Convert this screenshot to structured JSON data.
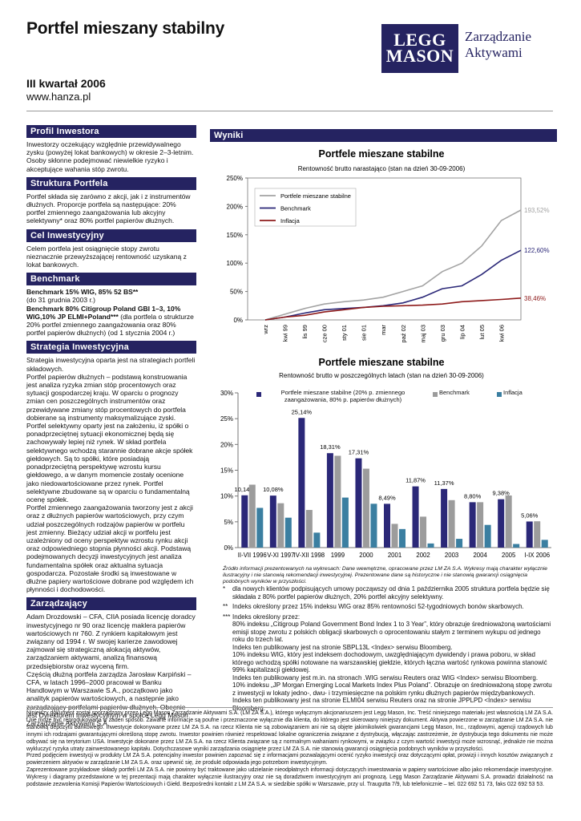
{
  "header": {
    "title": "Portfel mieszany stabilny",
    "quarter": "III kwartał 2006",
    "url": "www.hanza.pl"
  },
  "logo": {
    "brand": [
      "LEGG",
      "MASON"
    ],
    "tagline": [
      "Zarządzanie",
      "Aktywami"
    ]
  },
  "sections": [
    {
      "title": "Profil Inwestora",
      "paragraphs": [
        "Inwestorzy oczekujący względnie przewidywalnego zysku (powyżej lokat bankowych) w okresie 2–3-letnim. Osoby skłonne podejmować niewielkie ryzyko i akceptujące wahania stóp zwrotu."
      ]
    },
    {
      "title": "Struktura Portfela",
      "paragraphs": [
        "Portfel składa się zarówno z akcji, jak i z instrumentów dłużnych. Proporcje portfela są następujące: 20% portfel zmiennego zaangażowania lub akcyjny selektywny* oraz 80% portfel papierów dłużnych."
      ]
    },
    {
      "title": "Cel Inwestycyjny",
      "paragraphs": [
        "Celem portfela jest osiągnięcie stopy zwrotu nieznacznie przewyższającej rentowność uzyskaną z lokat bankowych."
      ]
    },
    {
      "title": "Benchmark",
      "paragraphs": [
        [
          {
            "text": "Benchmark 15% WIG, 85% 52 BS**",
            "bold": true
          }
        ],
        [
          {
            "text": "(do 31 grudnia 2003 r.)",
            "bold": false
          }
        ],
        [
          {
            "text": "Benchmark 80% Citigroup Poland GBI 1–3, 10% WIG,10% JP ELMI+Poland***",
            "bold": true
          },
          {
            "text": " (dla portfela o strukturze 20% portfel zmiennego zaangażowania oraz 80% portfel papierów dłużnych) (od 1 stycznia 2004 r.)",
            "bold": false
          }
        ]
      ]
    },
    {
      "title": "Strategia Inwestycyjna",
      "paragraphs": [
        "Strategia inwestycyjna oparta jest na strategiach portfeli składowych.",
        "Portfel papierów dłużnych – podstawą konstruowania jest analiza ryzyka zmian stóp procentowych oraz sytuacji gospodarczej kraju. W oparciu o prognozy zmian cen poszczególnych instrumentów oraz przewidywane zmiany stóp procentowych do portfela dobierane są instrumenty maksymalizujące zyski.",
        "Portfel selektywny oparty jest na założeniu, iż spółki o ponadprzeciętnej sytuacji ekonomicznej będą się zachowywały lepiej niż rynek. W skład portfela selektywnego wchodzą starannie dobrane akcje spółek giełdowych. Są to spółki, które posiadają ponadprzeciętną perspektywę wzrostu kursu giełdowego, a w danym momencie zostały ocenione jako niedowartościowane przez rynek. Portfel selektywne zbudowane są w oparciu o fundamentalną ocenę spółek.",
        "Portfel zmiennego zaangażowania tworzony jest z akcji oraz z dłużnych papierów wartościowych, przy czym udział poszczególnych rodzajów papierów w portfelu jest zmienny. Bieżący udział akcji w portfelu jest uzależniony od oceny perspektyw wzrostu rynku akcji oraz odpowiedniego stopnia płynności akcji. Podstawą podejmowanych decyzji inwestycyjnych jest analiza fundamentalna spółek oraz aktualna sytuacja gospodarcza. Pozostałe środki są inwestowane w dłużne papiery wartościowe dobrane pod względem ich płynności i dochodowości."
      ]
    },
    {
      "title": "Zarządzający",
      "paragraphs": [
        "Adam Drozdowski – CFA, CIIA posiada licencję doradcy inwestycyjnego nr 90 oraz licencję maklera papierów wartościowych nr 760. Z rynkiem kapitałowym jest związany od 1994 r. W swojej karierze zawodowej zajmował się strategiczną alokacją aktywów, zarządzaniem aktywami, analizą finansową przedsiębiorstw oraz wyceną firm.",
        "Częścią dłużną portfela zarządza Jarosław Karpiński – CFA, w latach 1996–2000 pracował w Banku Handlowym w Warszawie S.A., początkowo jako analityk papierów wartościowych, a następnie jako zarządzający portfelami papierów dłużnych. Obecnie jest Dyrektorem Inwestycyjnym w spółce Legg Mason Zarządzanie Aktywami S.A."
      ]
    }
  ],
  "results_title": "Wyniki",
  "chart_data": [
    {
      "type": "line",
      "title": "Portfele mieszane stabilne",
      "subtitle": "Rentowność brutto narastająco (stan na dzień 30-09-2006)",
      "categories": [
        "wrz",
        "kwi 99",
        "lis 99",
        "cze 00",
        "sty 01",
        "sie 01",
        "mar",
        "paź 02",
        "maj 03",
        "gru 03",
        "lip 04",
        "lut 05",
        "kwi 06",
        null
      ],
      "series": [
        {
          "name": "Portfele mieszane stabilne",
          "color": "#a3a3a3",
          "values": [
            0,
            10,
            20,
            28,
            32,
            35,
            40,
            50,
            60,
            85,
            100,
            130,
            175,
            193.52
          ],
          "value_labels": [
            null,
            null,
            null,
            null,
            null,
            null,
            null,
            null,
            null,
            null,
            null,
            null,
            null,
            "193,52%"
          ]
        },
        {
          "name": "Benchmark",
          "color": "#2b2878",
          "values": [
            0,
            5,
            12,
            18,
            20,
            22,
            25,
            30,
            40,
            55,
            60,
            80,
            105,
            122.6
          ],
          "value_labels": [
            null,
            null,
            null,
            null,
            null,
            null,
            null,
            null,
            null,
            null,
            null,
            null,
            null,
            "122,60%"
          ]
        },
        {
          "name": "Inflacja",
          "color": "#8e1b1b",
          "values": [
            0,
            5,
            8,
            14,
            18,
            22,
            24,
            25,
            26,
            28,
            32,
            34,
            36,
            38.46
          ],
          "value_labels": [
            null,
            null,
            null,
            null,
            null,
            null,
            null,
            null,
            null,
            null,
            null,
            null,
            null,
            "38,46%"
          ]
        }
      ],
      "ylim": [
        0,
        250
      ],
      "yticks": [
        {
          "value": 0,
          "label": "0%"
        },
        {
          "value": 50,
          "label": "50%"
        },
        {
          "value": 100,
          "label": "100%"
        },
        {
          "value": 150,
          "label": "150%"
        },
        {
          "value": 200,
          "label": "200%"
        },
        {
          "value": 250,
          "label": "250%"
        }
      ],
      "grid": false,
      "legend": "upper left"
    },
    {
      "type": "bar",
      "title": "Portfele mieszane stabilne",
      "subtitle": "Rentowność brutto w poszczególnych latach (stan na dzień 30-09-2006)",
      "categories": [
        "II-VII 1996",
        "V-XI 1997",
        "IV-XII 1998",
        "1999",
        "2000",
        "2001",
        "2002",
        "2003",
        "2004",
        "2005",
        "I-IX 2006"
      ],
      "series": [
        {
          "name": "Portfele mieszane stabilne (20% p. zmiennego zaangażowania, 80% p. papierów dłużnych)",
          "color": "#2b2878",
          "values": [
            10.14,
            10.08,
            25.14,
            18.31,
            17.31,
            8.49,
            11.87,
            11.37,
            8.8,
            9.38,
            5.06
          ],
          "value_labels": [
            "10,14%",
            "10,08%",
            "25,14%",
            "18,31%",
            "17,31%",
            "8,49%",
            "11,87%",
            "11,37%",
            "8,80%",
            "9,38%",
            "5,06%"
          ]
        },
        {
          "name": "Benchmark",
          "color": "#9c9c9c",
          "values": [
            12.2,
            8.6,
            7.3,
            17.8,
            15.3,
            4.6,
            6.0,
            9.2,
            8.8,
            10.1,
            5.1
          ]
        },
        {
          "name": "Inflacja",
          "color": "#3b7fa1",
          "values": [
            7.7,
            5.8,
            2.9,
            9.7,
            8.5,
            3.6,
            0.8,
            1.7,
            4.4,
            0.7,
            1.5
          ]
        }
      ],
      "ylim": [
        0,
        30
      ],
      "yticks": [
        {
          "value": 0,
          "label": "0%"
        },
        {
          "value": 5,
          "label": "5%"
        },
        {
          "value": 10,
          "label": "10%"
        },
        {
          "value": 15,
          "label": "15%"
        },
        {
          "value": 20,
          "label": "20%"
        },
        {
          "value": 25,
          "label": "25%"
        },
        {
          "value": 30,
          "label": "30%"
        }
      ],
      "grid": false,
      "legend": "top"
    }
  ],
  "source_note": "Źródło informacji prezentowanych na wykresach: Dane wewnętrzne, opracowane przez LM ZA S.A. Wykresy mają charakter wyłącznie ilustracyjny i nie stanowią rekomendacji inwestycyjnej. Prezentowane dane są historyczne i nie stanowią gwarancji osiągnięcia podobnych wyników w przyszłości.",
  "footnotes": [
    {
      "mark": "*",
      "text": "dla nowych klientów podpisujących umowy począwszy od dnia 1 października 2005 struktura portfela będzie się składała z 80% portfel papierów dłużnych, 20% portfel akcyjny selektywny."
    },
    {
      "mark": "**",
      "text": "Indeks określony przez 15% indeksu WIG oraz 85% rentowności 52-tygodniowych bonów skarbowych."
    },
    {
      "mark": "***",
      "text": "Indeks określony przez:",
      "lines": [
        "80% indeksu „Citigroup Poland Government Bond Index 1 to 3 Year”, który obrazuje średnioważoną wartościami emisji stopę zwrotu z polskich obligacji skarbowych o oprocentowaniu stałym z terminem wykupu od jednego roku do trzech lat.",
        "Indeks ten publikowany jest na stronie SBPL13L <Index> serwisu Bloomberg.",
        "10% indeksu WIG, który jest indeksem dochodowym, uwzględniającym dywidendy i prawa poboru, w skład którego wchodzą spółki notowane na warszawskiej giełdzie, których łączna wartość rynkowa powinna stanowić 99% kapitalizacji giełdowej.",
        "Indeks ten publikowany jest m.in. na stronach .WIG serwisu Reuters oraz WIG <Index> serwisu Bloomberg.",
        "10% indeksu „JP Morgan Emerging Local Markets Index Plus Poland”. Obrazuje on średnioważoną stopę zwrotu z inwestycji w lokaty jedno-, dwu- i trzymiesięczne na polskim rynku dłużnych papierów międzybankowych.",
        "Indeks ten publikowany jest na stronie ELMI04 serwisu Reuters oraz na stronie JPPLPD <Index> serwisu Bloomberg."
      ]
    }
  ],
  "disclaimer": [
    "Niniejszy dokument został sporządzony przez Legg Mason Zarządzanie Aktywami S.A. (LM ZA S.A.), którego wyłącznym akcjonariuszem jest Legg Mason, Inc. Treść niniejszego materiału jest własnością LM ZA S.A. i nie może być reprodukowana w żaden sposób. Zawarte informacje są poufne i przeznaczone wyłącznie dla klienta, do którego jest skierowany niniejszy dokument. Aktywa powierzone w zarządzanie LM ZA S.A. nie stanowią depozytu bankowego. Inwestycje dokonywane przez LM ZA S.A. na rzecz Klienta nie są zobowiązaniem ani nie są objęte jakimikolwiek gwarancjami Legg Mason, Inc., rządowymi, agencji rządowych lub innymi ich rodzajami gwarantującymi określoną stopę zwrotu. Inwestor powinien również respektować lokalne ograniczenia związane z dystrybucją, włączając zastrzeżenie, że dystrybucja tego dokumentu nie może odbywać się na terytorium USA. Inwestycje dokonane przez LM ZA S.A. na rzecz Klienta związane są z normalnym wahaniami rynkowymi, w związku z czym wartość inwestycji może wzrosnąć, jednakże nie można wykluczyć ryzyka utraty zainwestowanego kapitału. Dotychczasowe wyniki zarządzania osiągnięte przez LM ZA S.A. nie stanowią gwarancji osiągnięcia podobnych wyników w przyszłości.",
    "Przed podjęciem inwestycji w produkty LM ZA S.A. potencjalny inwestor powinien zapoznać się z informacjami pozwalającymi ocenić ryzyko inwestycji oraz dotyczącymi opłat, prowizji i innych kosztów związanych z powierzeniem aktywów w zarządzanie LM ZA S.A. oraz upewnić się, że produkt odpowiada jego potrzebom inwestycyjnym.",
    "Zaprezentowane przykładowe składy portfeli LM ZA S.A. nie powinny być traktowane jako udzielanie nieodpłatnych informacji dotyczących inwestowania w papiery wartościowe albo jako rekomendacje inwestycyjne. Wykresy i diagramy przedstawione w tej prezentacji mają charakter wyłącznie ilustracyjny oraz nie są doradztwem inwestycyjnym ani prognozą. Legg Mason Zarządzanie Aktywami S.A. prowadzi działalność na podstawie zezwolenia Komisji Papierów Wartościowych i Giełd. Bezpośredni kontakt z LM ZA S.A. w siedzibie spółki w Warszawie, przy ul. Traugutta 7/9, lub telefonicznie – tel. 022 692 51 73, faks 022 692 53 53."
  ]
}
